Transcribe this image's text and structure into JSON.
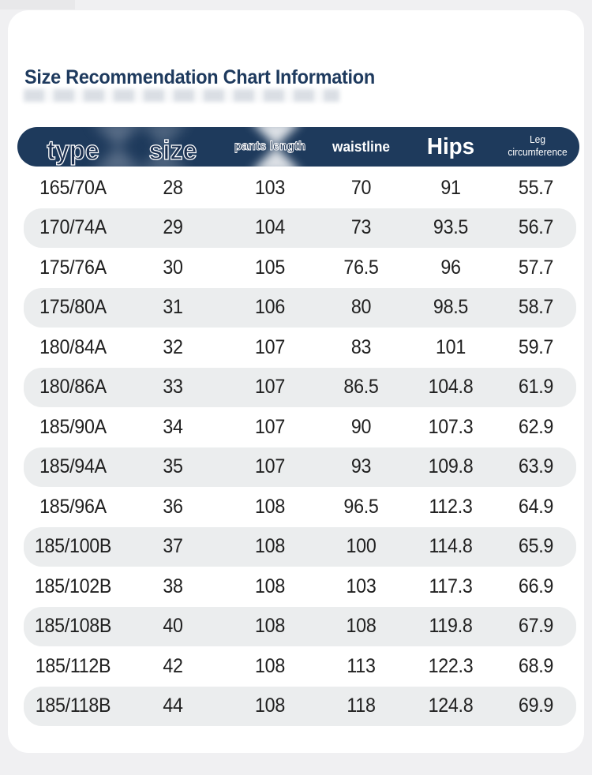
{
  "title": "Size Recommendation Chart Information",
  "theme": {
    "page_bg": "#f0f0f2",
    "card_bg": "#ffffff",
    "header_bg": "#1e3a5c",
    "header_text": "#ffffff",
    "title_color": "#1e3a5e",
    "row_alt_bg": "#ebedee",
    "row_text": "#202020"
  },
  "chart_data": {
    "type": "table",
    "title": "Size Recommendation Chart Information",
    "columns": [
      {
        "key": "type",
        "label": "type"
      },
      {
        "key": "size",
        "label": "size"
      },
      {
        "key": "pants_length",
        "label": "pants length"
      },
      {
        "key": "waistline",
        "label": "waistline"
      },
      {
        "key": "hips",
        "label": "Hips"
      },
      {
        "key": "leg_circumference",
        "label": "Leg circumference"
      }
    ],
    "rows": [
      [
        "165/70A",
        "28",
        "103",
        "70",
        "91",
        "55.7"
      ],
      [
        "170/74A",
        "29",
        "104",
        "73",
        "93.5",
        "56.7"
      ],
      [
        "175/76A",
        "30",
        "105",
        "76.5",
        "96",
        "57.7"
      ],
      [
        "175/80A",
        "31",
        "106",
        "80",
        "98.5",
        "58.7"
      ],
      [
        "180/84A",
        "32",
        "107",
        "83",
        "101",
        "59.7"
      ],
      [
        "180/86A",
        "33",
        "107",
        "86.5",
        "104.8",
        "61.9"
      ],
      [
        "185/90A",
        "34",
        "107",
        "90",
        "107.3",
        "62.9"
      ],
      [
        "185/94A",
        "35",
        "107",
        "93",
        "109.8",
        "63.9"
      ],
      [
        "185/96A",
        "36",
        "108",
        "96.5",
        "112.3",
        "64.9"
      ],
      [
        "185/100B",
        "37",
        "108",
        "100",
        "114.8",
        "65.9"
      ],
      [
        "185/102B",
        "38",
        "108",
        "103",
        "117.3",
        "66.9"
      ],
      [
        "185/108B",
        "40",
        "108",
        "108",
        "119.8",
        "67.9"
      ],
      [
        "185/112B",
        "42",
        "108",
        "113",
        "122.3",
        "68.9"
      ],
      [
        "185/118B",
        "44",
        "108",
        "118",
        "124.8",
        "69.9"
      ]
    ]
  }
}
